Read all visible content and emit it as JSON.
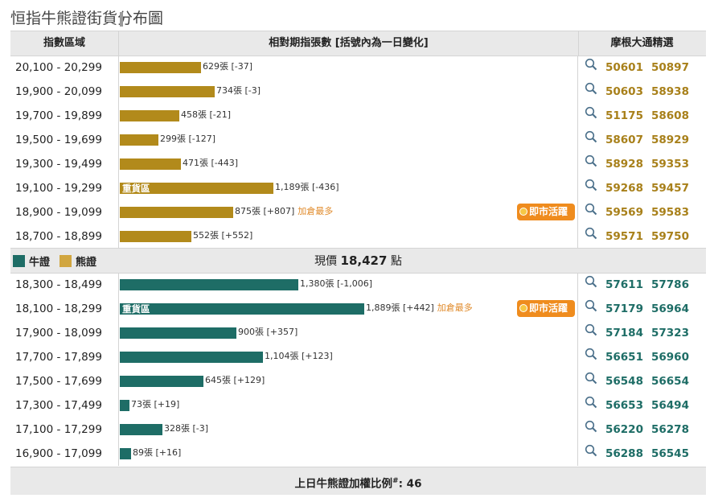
{
  "title": "恒指牛熊證街貨分布圖",
  "header": {
    "col_range": "指數區域",
    "col_count": "相對期指張數 [括號內為一日變化]",
    "col_jpm": "摩根大通精選"
  },
  "labels": {
    "heavy": "重貨區",
    "most_added": "加倉最多",
    "active": "即市活躍"
  },
  "legend": {
    "bull": "牛證",
    "bear": "熊證"
  },
  "current_price": {
    "prefix": "現價",
    "value": "18,427",
    "suffix": "點"
  },
  "footer": {
    "prefix": "上日牛熊證加權比例",
    "sup": "#",
    "value": ": 46"
  },
  "colors": {
    "bear": "#b28a1b",
    "bull": "#1e6d66",
    "accent": "#ef8c1e"
  },
  "chart_data": {
    "type": "bar",
    "orientation": "horizontal",
    "unit": "張",
    "bear_rows": [
      {
        "range": "20,100 - 20,299",
        "value": 629,
        "change": "-37",
        "label": "629張 [-37]",
        "codes": [
          "50601",
          "50897"
        ]
      },
      {
        "range": "19,900 - 20,099",
        "value": 734,
        "change": "-3",
        "label": "734張 [-3]",
        "codes": [
          "50603",
          "58938"
        ]
      },
      {
        "range": "19,700 - 19,899",
        "value": 458,
        "change": "-21",
        "label": "458張 [-21]",
        "codes": [
          "51175",
          "58608"
        ]
      },
      {
        "range": "19,500 - 19,699",
        "value": 299,
        "change": "-127",
        "label": "299張 [-127]",
        "codes": [
          "58607",
          "58929"
        ]
      },
      {
        "range": "19,300 - 19,499",
        "value": 471,
        "change": "-443",
        "label": "471張 [-443]",
        "codes": [
          "58928",
          "59353"
        ]
      },
      {
        "range": "19,100 - 19,299",
        "value": 1189,
        "change": "-436",
        "label": "1,189張 [-436]",
        "codes": [
          "59268",
          "59457"
        ],
        "heavy": true
      },
      {
        "range": "18,900 - 19,099",
        "value": 875,
        "change": "+807",
        "label": "875張 [+807]",
        "codes": [
          "59569",
          "59583"
        ],
        "most_added": true,
        "active": true
      },
      {
        "range": "18,700 - 18,899",
        "value": 552,
        "change": "+552",
        "label": "552張 [+552]",
        "codes": [
          "59571",
          "59750"
        ]
      }
    ],
    "bull_rows": [
      {
        "range": "18,300 - 18,499",
        "value": 1380,
        "change": "-1,006",
        "label": "1,380張 [-1,006]",
        "codes": [
          "57611",
          "57786"
        ]
      },
      {
        "range": "18,100 - 18,299",
        "value": 1889,
        "change": "+442",
        "label": "1,889張 [+442]",
        "codes": [
          "57179",
          "56964"
        ],
        "heavy": true,
        "most_added": true,
        "active": true
      },
      {
        "range": "17,900 - 18,099",
        "value": 900,
        "change": "+357",
        "label": "900張 [+357]",
        "codes": [
          "57184",
          "57323"
        ]
      },
      {
        "range": "17,700 - 17,899",
        "value": 1104,
        "change": "+123",
        "label": "1,104張 [+123]",
        "codes": [
          "56651",
          "56960"
        ]
      },
      {
        "range": "17,500 - 17,699",
        "value": 645,
        "change": "+129",
        "label": "645張 [+129]",
        "codes": [
          "56548",
          "56654"
        ]
      },
      {
        "range": "17,300 - 17,499",
        "value": 73,
        "change": "+19",
        "label": "73張 [+19]",
        "codes": [
          "56653",
          "56494"
        ]
      },
      {
        "range": "17,100 - 17,299",
        "value": 328,
        "change": "-3",
        "label": "328張 [-3]",
        "codes": [
          "56220",
          "56278"
        ]
      },
      {
        "range": "16,900 - 17,099",
        "value": 89,
        "change": "+16",
        "label": "89張 [+16]",
        "codes": [
          "56288",
          "56545"
        ]
      }
    ]
  }
}
